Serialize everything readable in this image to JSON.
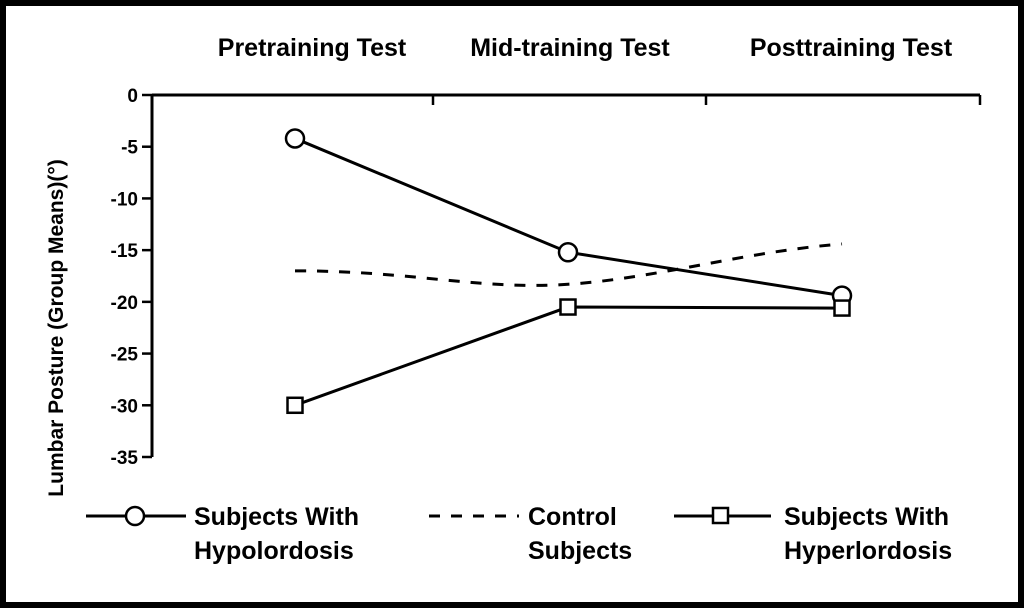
{
  "chart_data": {
    "type": "line",
    "title": "",
    "xlabel": "",
    "ylabel": "Lumbar Posture (Group Means)(°)",
    "categories": [
      "Pretraining Test",
      "Mid-training Test",
      "Posttraining Test"
    ],
    "ylim": [
      -35,
      0
    ],
    "yticks": [
      0,
      -5,
      -10,
      -15,
      -20,
      -25,
      -30,
      -35
    ],
    "grid": false,
    "legend_position": "bottom",
    "series": [
      {
        "name": "Subjects With Hypolordosis",
        "values": [
          -4.2,
          -15.2,
          -19.4
        ],
        "marker": "circle",
        "line": "solid",
        "color": "#000000"
      },
      {
        "name": "Control Subjects",
        "values": [
          -17.0,
          -18.3,
          -14.4
        ],
        "marker": "none",
        "line": "dashed",
        "color": "#000000"
      },
      {
        "name": "Subjects With Hyperlordosis",
        "values": [
          -30.0,
          -20.5,
          -20.6
        ],
        "marker": "square",
        "line": "solid",
        "color": "#000000"
      }
    ],
    "legend": [
      {
        "lines": [
          "Subjects With",
          "Hypolordosis"
        ]
      },
      {
        "lines": [
          "Control",
          "Subjects"
        ]
      },
      {
        "lines": [
          "Subjects With",
          "Hyperlordosis"
        ]
      }
    ]
  }
}
